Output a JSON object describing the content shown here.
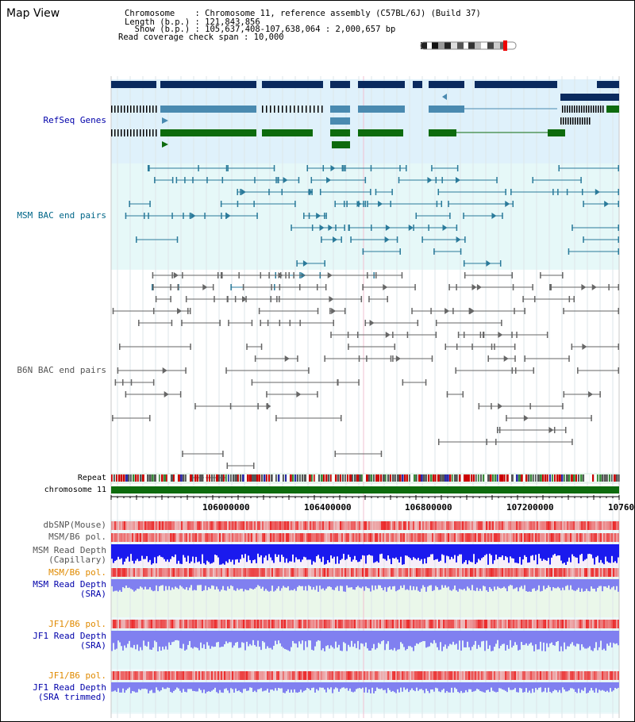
{
  "title": "Map View",
  "header": {
    "line1": "Chromosome    : Chromosome 11, reference assembly (C57BL/6J) (Build 37)",
    "line2": "Length (b.p.) : 121,843,856",
    "line3": "  Show (b.p.) : 105,637,408-107,638,064 : 2,000,657 bp",
    "line4": "Read coverage check span : 10,000"
  },
  "tracks": {
    "refseq": "RefSeq Genes",
    "msm_bac": "MSM BAC end pairs",
    "b6n_bac": "B6N BAC end pairs",
    "repeat": "Repeat",
    "chromosome": "chromosome 11",
    "dbsnp": "dbSNP(Mouse)",
    "msm_b6_pol_1": "MSM/B6 pol.",
    "msm_depth_cap_1": "MSM Read Depth",
    "msm_depth_cap_2": "(Capillary)",
    "msm_b6_pol_2": "MSM/B6 pol.",
    "msm_depth_sra_1": "MSM Read Depth",
    "msm_depth_sra_2": "(SRA)",
    "jf1_b6_pol_1": "JF1/B6 pol.",
    "jf1_depth_sra_1": "JF1 Read Depth",
    "jf1_depth_sra_2": "(SRA)",
    "jf1_b6_pol_2": "JF1/B6 pol.",
    "jf1_depth_trim_1": "JF1 Read Depth",
    "jf1_depth_trim_2": "(SRA trimmed)"
  },
  "axis": {
    "tick1": "106000000",
    "tick2": "106400000",
    "tick3": "106800000",
    "tick4": "107200000",
    "tick5": "10760"
  },
  "colors": {
    "refseq_dark": "#0a2a5e",
    "refseq_mid": "#4a8ab0",
    "refseq_green": "#0d6b0d",
    "refseq_bg": "#dff1fb",
    "msm_bac": "#2a7a9a",
    "b6n_bac": "#666666",
    "chrom_green": "#0d6b0d",
    "depth_blue": "#1a1aee",
    "depth_sra": "#8080f0"
  }
}
